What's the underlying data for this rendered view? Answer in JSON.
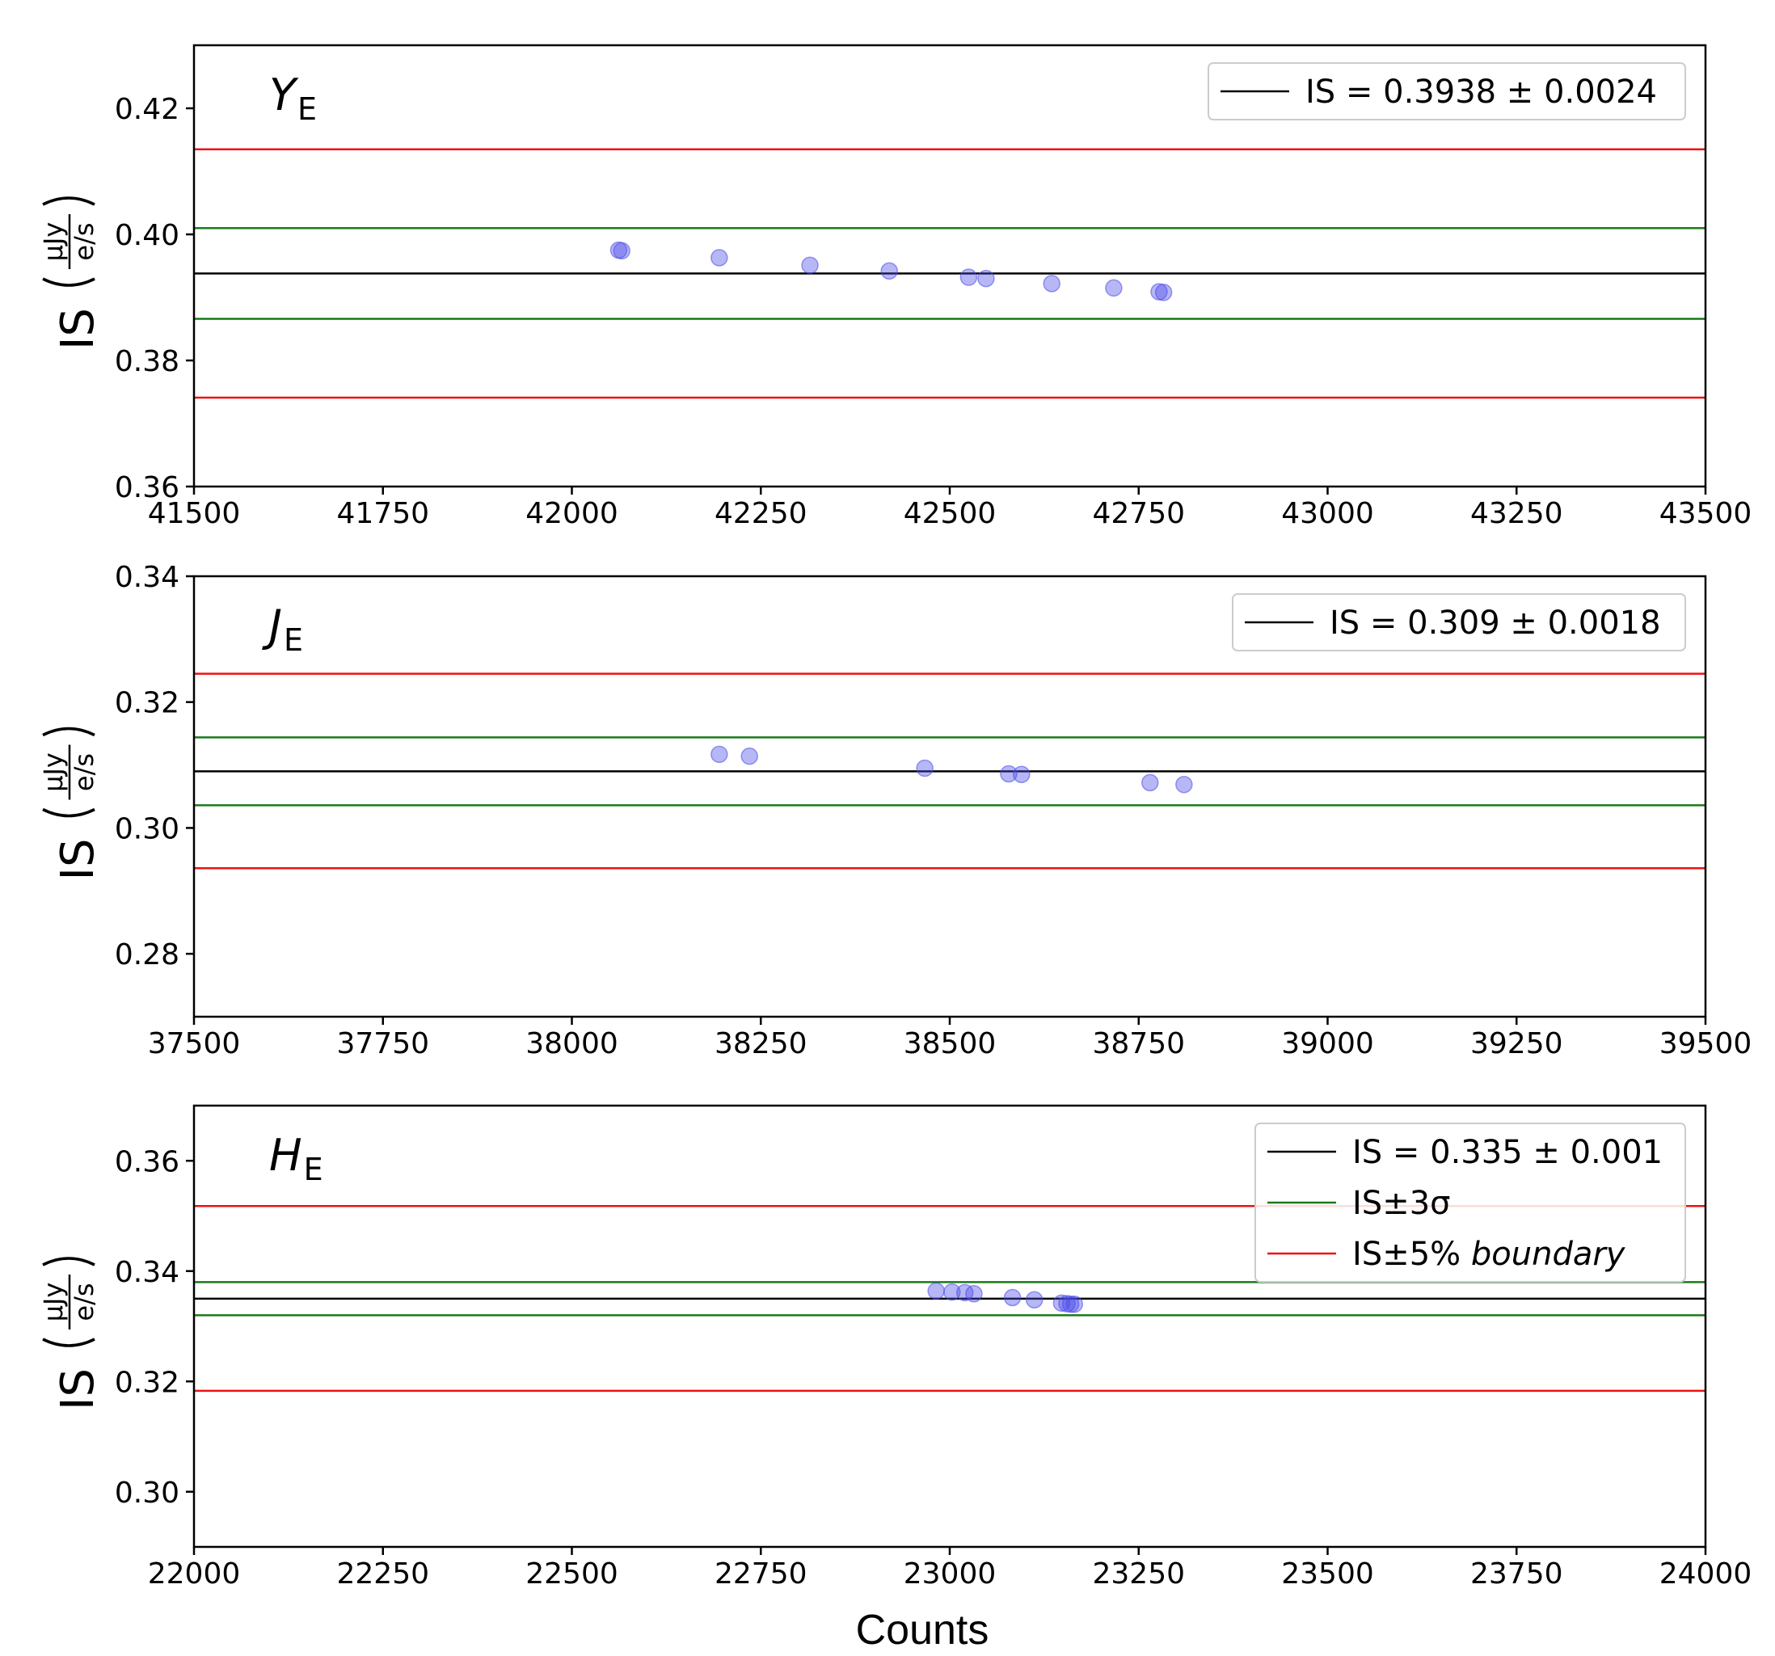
{
  "figure": {
    "xlabel": "Counts",
    "ylabel_prefix": "IS",
    "ylabel_num": "μJy",
    "ylabel_den": "e/s"
  },
  "colors": {
    "is_line": "#000000",
    "sigma_line": "#1a7a1a",
    "boundary_line": "#ee1111",
    "points": "#4a4ae8"
  },
  "chart_data": [
    {
      "type": "scatter",
      "band_main": "Y",
      "band_sub": "E",
      "xlim": [
        41500,
        43500
      ],
      "ylim": [
        0.36,
        0.43
      ],
      "xticks": [
        41500,
        41750,
        42000,
        42250,
        42500,
        42750,
        43000,
        43250,
        43500
      ],
      "yticks": [
        0.36,
        0.38,
        0.4,
        0.42
      ],
      "ytick_labels": [
        "0.36",
        "0.38",
        "0.40",
        "0.42"
      ],
      "is_value": 0.3938,
      "sigma_lines": [
        0.3866,
        0.401
      ],
      "boundary_lines": [
        0.3741,
        0.4135
      ],
      "legend": [
        "IS = 0.3938 ± 0.0024"
      ],
      "points": [
        {
          "x": 42062,
          "y": 0.3975
        },
        {
          "x": 42066,
          "y": 0.3974
        },
        {
          "x": 42195,
          "y": 0.3963
        },
        {
          "x": 42315,
          "y": 0.3951
        },
        {
          "x": 42420,
          "y": 0.3942
        },
        {
          "x": 42525,
          "y": 0.3932
        },
        {
          "x": 42548,
          "y": 0.393
        },
        {
          "x": 42635,
          "y": 0.3922
        },
        {
          "x": 42717,
          "y": 0.3915
        },
        {
          "x": 42777,
          "y": 0.3909
        },
        {
          "x": 42783,
          "y": 0.3908
        }
      ]
    },
    {
      "type": "scatter",
      "band_main": "J",
      "band_sub": "E",
      "xlim": [
        37500,
        39500
      ],
      "ylim": [
        0.27,
        0.34
      ],
      "xticks": [
        37500,
        37750,
        38000,
        38250,
        38500,
        38750,
        39000,
        39250,
        39500
      ],
      "yticks": [
        0.28,
        0.3,
        0.32,
        0.34
      ],
      "ytick_labels": [
        "0.28",
        "0.30",
        "0.32",
        "0.34"
      ],
      "is_value": 0.309,
      "sigma_lines": [
        0.3036,
        0.3144
      ],
      "boundary_lines": [
        0.2936,
        0.3245
      ],
      "legend": [
        "IS = 0.309 ± 0.0018"
      ],
      "points": [
        {
          "x": 38195,
          "y": 0.3117
        },
        {
          "x": 38235,
          "y": 0.3114
        },
        {
          "x": 38467,
          "y": 0.3095
        },
        {
          "x": 38578,
          "y": 0.3086
        },
        {
          "x": 38595,
          "y": 0.3085
        },
        {
          "x": 38765,
          "y": 0.3072
        },
        {
          "x": 38810,
          "y": 0.3069
        }
      ]
    },
    {
      "type": "scatter",
      "band_main": "H",
      "band_sub": "E",
      "xlim": [
        22000,
        24000
      ],
      "ylim": [
        0.29,
        0.37
      ],
      "xticks": [
        22000,
        22250,
        22500,
        22750,
        23000,
        23250,
        23500,
        23750,
        24000
      ],
      "yticks": [
        0.3,
        0.32,
        0.34,
        0.36
      ],
      "ytick_labels": [
        "0.30",
        "0.32",
        "0.34",
        "0.36"
      ],
      "is_value": 0.335,
      "sigma_lines": [
        0.332,
        0.338
      ],
      "boundary_lines": [
        0.3183,
        0.3518
      ],
      "legend": [
        "IS = 0.335 ± 0.001",
        "IS±3σ",
        "IS±5% boundary"
      ],
      "points": [
        {
          "x": 22982,
          "y": 0.3364
        },
        {
          "x": 23003,
          "y": 0.3362
        },
        {
          "x": 23020,
          "y": 0.3361
        },
        {
          "x": 23032,
          "y": 0.3359
        },
        {
          "x": 23083,
          "y": 0.3352
        },
        {
          "x": 23112,
          "y": 0.3348
        },
        {
          "x": 23148,
          "y": 0.3342
        },
        {
          "x": 23155,
          "y": 0.3341
        },
        {
          "x": 23160,
          "y": 0.334
        },
        {
          "x": 23165,
          "y": 0.334
        }
      ]
    }
  ]
}
